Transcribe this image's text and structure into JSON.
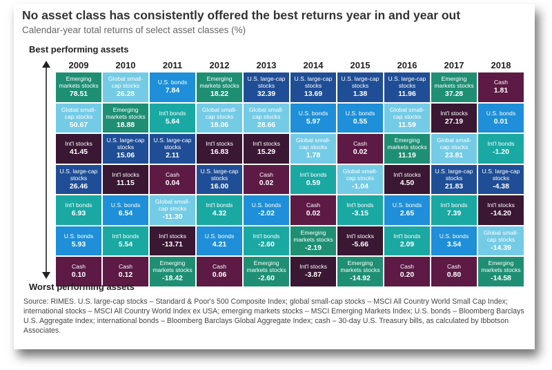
{
  "title": "No asset class has consistently offered the best returns year in and year out",
  "subtitle": "Calendar-year total returns of select asset classes (%)",
  "best_label": "Best performing assets",
  "worst_label": "Worst performing assets",
  "source": "Source: RIMES. U.S. large-cap stocks – Standard & Poor's 500 Composite Index; global small-cap stocks – MSCI All Country World Small Cap Index; international stocks – MSCI All Country World Index ex USA; emerging markets stocks – MSCI Emerging Markets Index; U.S. bonds – Bloomberg Barclays U.S. Aggregate Index; international bonds – Bloomberg Barclays Global Aggregate Index; cash – 30-day U.S. Treasury bills, as calculated by Ibbotson Associates.",
  "colors": {
    "Emerging markets stocks": "#1f8f73",
    "Global small-cap stocks": "#74cbe6",
    "U.S. bonds": "#1e8fd8",
    "U.S. large-cap stocks": "#1f4e96",
    "Cash": "#5c1a45",
    "Int'l stocks": "#3a1733",
    "Int'l bonds": "#1aa8a3"
  },
  "chart_data": {
    "type": "table",
    "years": [
      "2009",
      "2010",
      "2011",
      "2012",
      "2013",
      "2014",
      "2015",
      "2016",
      "2017",
      "2018"
    ],
    "columns": [
      {
        "year": "2009",
        "cells": [
          {
            "asset": "Emerging markets stocks",
            "value": "78.51"
          },
          {
            "asset": "Global small-cap stocks",
            "value": "50.67"
          },
          {
            "asset": "Int'l stocks",
            "value": "41.45"
          },
          {
            "asset": "U.S. large-cap stocks",
            "value": "26.46"
          },
          {
            "asset": "Int'l bonds",
            "value": "6.93"
          },
          {
            "asset": "U.S. bonds",
            "value": "5.93"
          },
          {
            "asset": "Cash",
            "value": "0.10"
          }
        ]
      },
      {
        "year": "2010",
        "cells": [
          {
            "asset": "Global small-cap stocks",
            "value": "26.28"
          },
          {
            "asset": "Emerging markets stocks",
            "value": "18.88"
          },
          {
            "asset": "U.S. large-cap stocks",
            "value": "15.06"
          },
          {
            "asset": "Int'l stocks",
            "value": "11.15"
          },
          {
            "asset": "U.S. bonds",
            "value": "6.54"
          },
          {
            "asset": "Int'l bonds",
            "value": "5.54"
          },
          {
            "asset": "Cash",
            "value": "0.12"
          }
        ]
      },
      {
        "year": "2011",
        "cells": [
          {
            "asset": "U.S. bonds",
            "value": "7.84"
          },
          {
            "asset": "Int'l bonds",
            "value": "5.64"
          },
          {
            "asset": "U.S. large-cap stocks",
            "value": "2.11"
          },
          {
            "asset": "Cash",
            "value": "0.04"
          },
          {
            "asset": "Global small-cap stocks",
            "value": "-11.30"
          },
          {
            "asset": "Int'l stocks",
            "value": "-13.71"
          },
          {
            "asset": "Emerging markets stocks",
            "value": "-18.42"
          }
        ]
      },
      {
        "year": "2012",
        "cells": [
          {
            "asset": "Emerging markets stocks",
            "value": "18.22"
          },
          {
            "asset": "Global small-cap stocks",
            "value": "18.06"
          },
          {
            "asset": "Int'l stocks",
            "value": "16.83"
          },
          {
            "asset": "U.S. large-cap stocks",
            "value": "16.00"
          },
          {
            "asset": "Int'l bonds",
            "value": "4.32"
          },
          {
            "asset": "U.S. bonds",
            "value": "4.21"
          },
          {
            "asset": "Cash",
            "value": "0.06"
          }
        ]
      },
      {
        "year": "2013",
        "cells": [
          {
            "asset": "U.S. large-cap stocks",
            "value": "32.39"
          },
          {
            "asset": "Global small-cap stocks",
            "value": "28.66"
          },
          {
            "asset": "Int'l stocks",
            "value": "15.29"
          },
          {
            "asset": "Cash",
            "value": "0.02"
          },
          {
            "asset": "U.S. bonds",
            "value": "-2.02"
          },
          {
            "asset": "Int'l bonds",
            "value": "-2.60"
          },
          {
            "asset": "Emerging markets stocks",
            "value": "-2.60"
          }
        ]
      },
      {
        "year": "2014",
        "cells": [
          {
            "asset": "U.S. large-cap stocks",
            "value": "13.69"
          },
          {
            "asset": "U.S. bonds",
            "value": "5.97"
          },
          {
            "asset": "Global small-cap stocks",
            "value": "1.78"
          },
          {
            "asset": "Int'l bonds",
            "value": "0.59"
          },
          {
            "asset": "Cash",
            "value": "0.02"
          },
          {
            "asset": "Emerging markets stocks",
            "value": "-2.19"
          },
          {
            "asset": "Int'l stocks",
            "value": "-3.87"
          }
        ]
      },
      {
        "year": "2015",
        "cells": [
          {
            "asset": "U.S. large-cap stocks",
            "value": "1.38"
          },
          {
            "asset": "U.S. bonds",
            "value": "0.55"
          },
          {
            "asset": "Cash",
            "value": "0.02"
          },
          {
            "asset": "Global small-cap stocks",
            "value": "-1.04"
          },
          {
            "asset": "Int'l bonds",
            "value": "-3.15"
          },
          {
            "asset": "Int'l stocks",
            "value": "-5.66"
          },
          {
            "asset": "Emerging markets stocks",
            "value": "-14.92"
          }
        ]
      },
      {
        "year": "2016",
        "cells": [
          {
            "asset": "U.S. large-cap stocks",
            "value": "11.96"
          },
          {
            "asset": "Global small-cap stocks",
            "value": "11.59"
          },
          {
            "asset": "Emerging markets stocks",
            "value": "11.19"
          },
          {
            "asset": "Int'l stocks",
            "value": "4.50"
          },
          {
            "asset": "U.S. bonds",
            "value": "2.65"
          },
          {
            "asset": "Int'l bonds",
            "value": "2.09"
          },
          {
            "asset": "Cash",
            "value": "0.20"
          }
        ]
      },
      {
        "year": "2017",
        "cells": [
          {
            "asset": "Emerging markets stocks",
            "value": "37.28"
          },
          {
            "asset": "Int'l stocks",
            "value": "27.19"
          },
          {
            "asset": "Global small-cap stocks",
            "value": "23.81"
          },
          {
            "asset": "U.S. large-cap stocks",
            "value": "21.83"
          },
          {
            "asset": "Int'l bonds",
            "value": "7.39"
          },
          {
            "asset": "U.S. bonds",
            "value": "3.54"
          },
          {
            "asset": "Cash",
            "value": "0.80"
          }
        ]
      },
      {
        "year": "2018",
        "cells": [
          {
            "asset": "Cash",
            "value": "1.81"
          },
          {
            "asset": "U.S. bonds",
            "value": "0.01"
          },
          {
            "asset": "Int'l bonds",
            "value": "-1.20"
          },
          {
            "asset": "U.S. large-cap stocks",
            "value": "-4.38"
          },
          {
            "asset": "Int'l stocks",
            "value": "-14.20"
          },
          {
            "asset": "Global small-cap stocks",
            "value": "-14.39"
          },
          {
            "asset": "Emerging markets stocks",
            "value": "-14.58"
          }
        ]
      }
    ]
  }
}
